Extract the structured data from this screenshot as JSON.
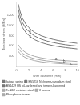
{
  "chart_data": {
    "type": "line",
    "xlabel": "Wire diameter (mm)",
    "ylabel": "Torsional stress (MPa)",
    "xlim": [
      0,
      10
    ],
    "ylim": [
      200,
      1450
    ],
    "xticks": [
      0,
      2,
      4,
      6,
      8,
      10
    ],
    "yticks": [
      400,
      600,
      800,
      1000,
      1200
    ],
    "grid": false,
    "legend": "bottom",
    "x": [
      0.3,
      0.5,
      0.8,
      1.0,
      1.5,
      2.0,
      2.5,
      3.0,
      4.0,
      5.0,
      6.0,
      7.0,
      8.0,
      9.0,
      10.0
    ],
    "series": [
      {
        "name": "fatigue spring",
        "color": "#777777",
        "line_style": "solid",
        "values": [
          1420,
          1310,
          1195,
          1135,
          1030,
          960,
          905,
          862,
          800,
          758,
          726,
          700,
          680,
          663,
          648
        ]
      },
      {
        "name": "BS5216 N chrome-vanadium steel",
        "color": "#777777",
        "line_style": "solid",
        "values": [
          1320,
          1215,
          1105,
          1050,
          950,
          882,
          832,
          790,
          732,
          693,
          663,
          640,
          621,
          606,
          592
        ]
      },
      {
        "name": "BS1429 HS oil-hardened and temper-hardened",
        "color": "#777777",
        "line_style": "solid",
        "values": [
          1210,
          1115,
          1010,
          957,
          865,
          803,
          757,
          718,
          665,
          629,
          602,
          581,
          564,
          550,
          537
        ]
      },
      {
        "name": "To BS2 stainless steel",
        "color": "#aaaaaa",
        "line_style": "solid",
        "values": [
          620,
          577,
          535,
          510,
          465,
          434,
          410,
          390,
          362,
          342,
          327,
          315,
          306,
          298,
          291
        ]
      },
      {
        "name": "V-bronze",
        "color": "#aaaaaa",
        "line_style": "solid",
        "values": [
          548,
          510,
          472,
          450,
          410,
          383,
          361,
          344,
          319,
          301,
          288,
          278,
          269,
          262,
          256
        ]
      },
      {
        "name": "Phosphorus-bronze",
        "color": "#aaaaaa",
        "line_style": "solid",
        "values": [
          488,
          454,
          420,
          400,
          364,
          340,
          322,
          306,
          283,
          268,
          257,
          248,
          240,
          234,
          229
        ]
      }
    ],
    "annotations": [
      {
        "text": "1",
        "x": 2.2,
        "y": 912
      },
      {
        "text": "2",
        "x": 2.2,
        "y": 842
      },
      {
        "text": "3",
        "x": 2.2,
        "y": 772
      },
      {
        "text": "a",
        "x": 6.5,
        "y": 335
      },
      {
        "text": "b",
        "x": 7.8,
        "y": 285
      },
      {
        "text": "c",
        "x": 9.0,
        "y": 242
      }
    ]
  }
}
